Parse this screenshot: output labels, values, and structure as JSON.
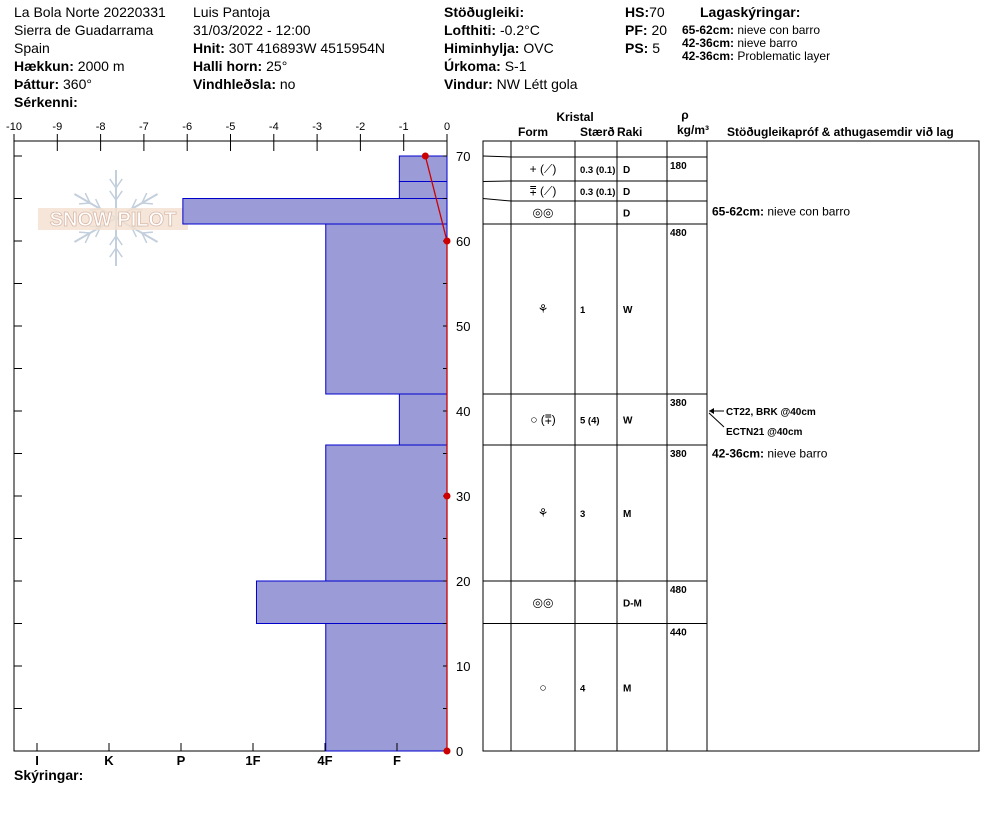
{
  "header": {
    "col1": {
      "site": "La Bola Norte 20220331",
      "range": "Sierra de Guadarrama",
      "country": "Spain",
      "elevation_label": "Hækkun:",
      "elevation_value": "2000 m",
      "aspect_label": "Þáttur:",
      "aspect_value": "360°",
      "features_label": "Sérkenni:"
    },
    "col2": {
      "observer": "Luis Pantoja",
      "datetime": "31/03/2022 - 12:00",
      "coords_label": "Hnit:",
      "coords_value": "30T 416893W 4515954N",
      "slope_label": "Halli horn:",
      "slope_value": "25°",
      "wind_loading_label": "Vindhleðsla:",
      "wind_loading_value": "no"
    },
    "col3": {
      "stability_label": "Stöðugleiki:",
      "airtemp_label": "Lofthiti:",
      "airtemp_value": "-0.2°C",
      "sky_label": "Himinhylja:",
      "sky_value": "OVC",
      "precip_label": "Úrkoma:",
      "precip_value": "S-1",
      "wind_label": "Vindur:",
      "wind_value": "NW Létt gola"
    },
    "col4": {
      "hs_label": "HS:",
      "hs_value": "70",
      "pf_label": "PF:",
      "pf_value": "20",
      "ps_label": "PS:",
      "ps_value": "5"
    },
    "legend": {
      "title": "Lagaskýringar:",
      "items": [
        {
          "range": "65-62cm:",
          "text": "nieve con barro"
        },
        {
          "range": "42-36cm:",
          "text": "nieve barro"
        },
        {
          "range": "42-36cm:",
          "text": "Problematic layer"
        }
      ]
    }
  },
  "watermark": {
    "text": "SNOW PILOT"
  },
  "footer": {
    "notes_label": "Skýringar:"
  },
  "table_headers": {
    "crystal": "Kristal",
    "form": "Form",
    "size": "Stærð",
    "moisture": "Raki",
    "rho": "ρ",
    "density_unit": "kg/m³",
    "tests": "Stöðugleikapróf & athugasemdir við lag"
  },
  "chart_data": {
    "type": "bar",
    "temperature_axis": {
      "ticks": [
        -10,
        -9,
        -8,
        -7,
        -6,
        -5,
        -4,
        -3,
        -2,
        -1,
        0
      ],
      "range": [
        -10,
        0
      ]
    },
    "height_axis": {
      "ticks": [
        0,
        10,
        20,
        30,
        40,
        50,
        60,
        70
      ],
      "range": [
        0,
        70
      ],
      "unit": "cm"
    },
    "hardness_axis": {
      "labels": [
        "I",
        "K",
        "P",
        "1F",
        "4F",
        "F"
      ]
    },
    "hardness_profile": [
      {
        "from": 70,
        "to": 67,
        "temp_extent": -1.1
      },
      {
        "from": 67,
        "to": 65,
        "temp_extent": -1.1
      },
      {
        "from": 65,
        "to": 62,
        "temp_extent": -6.1
      },
      {
        "from": 62,
        "to": 42,
        "temp_extent": -2.8
      },
      {
        "from": 42,
        "to": 36,
        "temp_extent": -1.1
      },
      {
        "from": 36,
        "to": 20,
        "temp_extent": -2.8
      },
      {
        "from": 20,
        "to": 15,
        "temp_extent": -4.4
      },
      {
        "from": 15,
        "to": 0,
        "temp_extent": -2.8
      }
    ],
    "temperature_profile": [
      {
        "height": 70,
        "temp": -0.5
      },
      {
        "height": 60,
        "temp": 0
      },
      {
        "height": 30,
        "temp": 0
      },
      {
        "height": 0,
        "temp": 0
      }
    ]
  },
  "layers": [
    {
      "top": 70,
      "bottom": 67,
      "form": "+ (⟋)",
      "size": "0.3 (0.1)",
      "moisture": "D",
      "density": "180"
    },
    {
      "top": 67,
      "bottom": 65,
      "form": "⩱ (⟋)",
      "size": "0.3 (0.1)",
      "moisture": "D",
      "density": ""
    },
    {
      "top": 65,
      "bottom": 62,
      "form": "◎◎",
      "size": "",
      "moisture": "D",
      "density": ""
    },
    {
      "top": 62,
      "bottom": 42,
      "form": "⚘",
      "size": "1",
      "moisture": "W",
      "density": "480"
    },
    {
      "top": 42,
      "bottom": 36,
      "form": "○ (⩱)",
      "size": "5 (4)",
      "moisture": "W",
      "density": "380"
    },
    {
      "top": 36,
      "bottom": 20,
      "form": "⚘",
      "size": "3",
      "moisture": "M",
      "density": "380"
    },
    {
      "top": 20,
      "bottom": 15,
      "form": "◎◎",
      "size": "",
      "moisture": "D-M",
      "density": "480"
    },
    {
      "top": 15,
      "bottom": 0,
      "form": "○",
      "size": "4",
      "moisture": "M",
      "density": "440"
    }
  ],
  "comments": [
    {
      "height": 63.5,
      "label": "65-62cm:",
      "text": "nieve con barro"
    },
    {
      "height": 35,
      "label": "42-36cm:",
      "text": "nieve barro"
    }
  ],
  "tests": [
    {
      "height": 40,
      "text": "CT22, BRK @40cm"
    },
    {
      "height": 40,
      "text": "ECTN21 @40cm"
    }
  ],
  "colors": {
    "hardness_fill": "#9b9bd7",
    "hardness_edge": "#0000cc",
    "temp_line": "#cc0000"
  }
}
